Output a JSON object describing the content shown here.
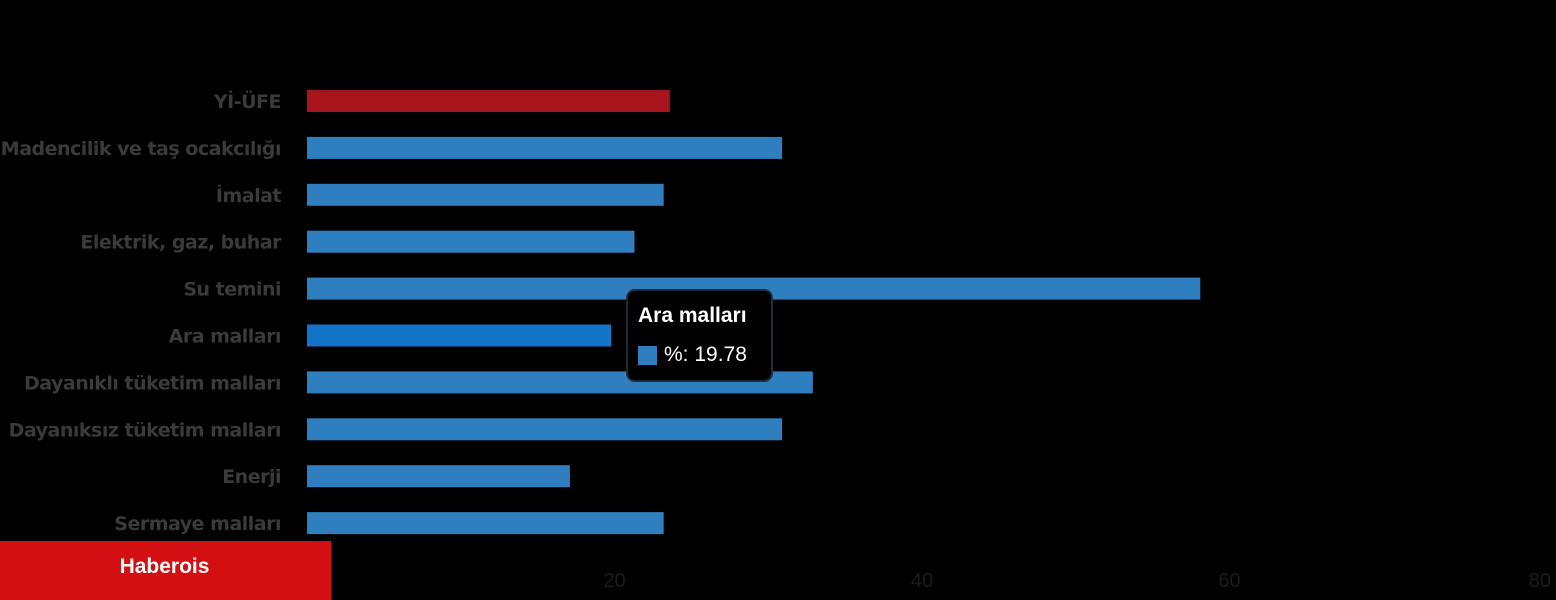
{
  "chart_data": {
    "type": "bar",
    "orientation": "horizontal",
    "categories": [
      "Yİ-ÜFE",
      "Madencilik ve taş ocakcılığı",
      "İmalat",
      "Elektrik, gaz, buhar",
      "Su temini",
      "Ara malları",
      "Dayanıklı tüketim malları",
      "Dayanıksız tüketim malları",
      "Enerji",
      "Sermaye malları"
    ],
    "values": [
      23.6,
      30.9,
      23.2,
      21.3,
      58.1,
      19.78,
      32.9,
      30.9,
      17.1,
      23.2
    ],
    "bar_colors": [
      "#a8151c",
      "#2f7ebf",
      "#2f7ebf",
      "#2f7ebf",
      "#2f7ebf",
      "#1474c7",
      "#2f7ebf",
      "#2f7ebf",
      "#2f7ebf",
      "#2f7ebf"
    ],
    "x_ticks": [
      0,
      20,
      40,
      60,
      80
    ],
    "xlim": [
      0,
      80
    ],
    "grid": false,
    "legend": "none"
  },
  "tooltip": {
    "title": "Ara malları",
    "series_label": "%",
    "value": "19.78",
    "text": "%: 19.78",
    "swatch_color": "#2f7ebf"
  },
  "brand": {
    "label": "Haberois",
    "color": "#d40f11"
  }
}
